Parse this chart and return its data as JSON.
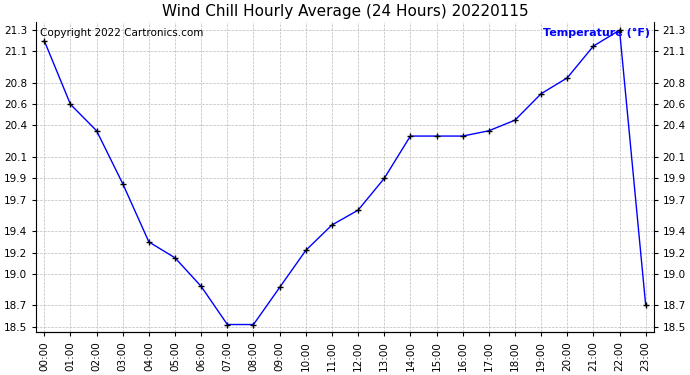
{
  "title": "Wind Chill Hourly Average (24 Hours) 20220115",
  "copyright": "Copyright 2022 Cartronics.com",
  "ylabel": "Temperature (°F)",
  "ylabel_color": "blue",
  "background_color": "#ffffff",
  "line_color": "blue",
  "marker_color": "black",
  "grid_color": "#bbbbbb",
  "hours": [
    0,
    1,
    2,
    3,
    4,
    5,
    6,
    7,
    8,
    9,
    10,
    11,
    12,
    13,
    14,
    15,
    16,
    17,
    18,
    19,
    20,
    21,
    22,
    23
  ],
  "values": [
    21.2,
    20.6,
    20.35,
    19.85,
    19.3,
    19.15,
    18.88,
    18.52,
    18.52,
    18.87,
    19.22,
    19.46,
    19.6,
    19.9,
    20.3,
    20.3,
    20.3,
    20.35,
    20.45,
    20.7,
    20.85,
    21.15,
    21.3,
    18.7
  ],
  "ylim": [
    18.45,
    21.38
  ],
  "yticks": [
    18.5,
    18.7,
    19.0,
    19.2,
    19.4,
    19.7,
    19.9,
    20.1,
    20.4,
    20.6,
    20.8,
    21.1,
    21.3
  ],
  "title_fontsize": 11,
  "label_fontsize": 8,
  "copyright_fontsize": 7.5,
  "tick_fontsize": 7.5
}
